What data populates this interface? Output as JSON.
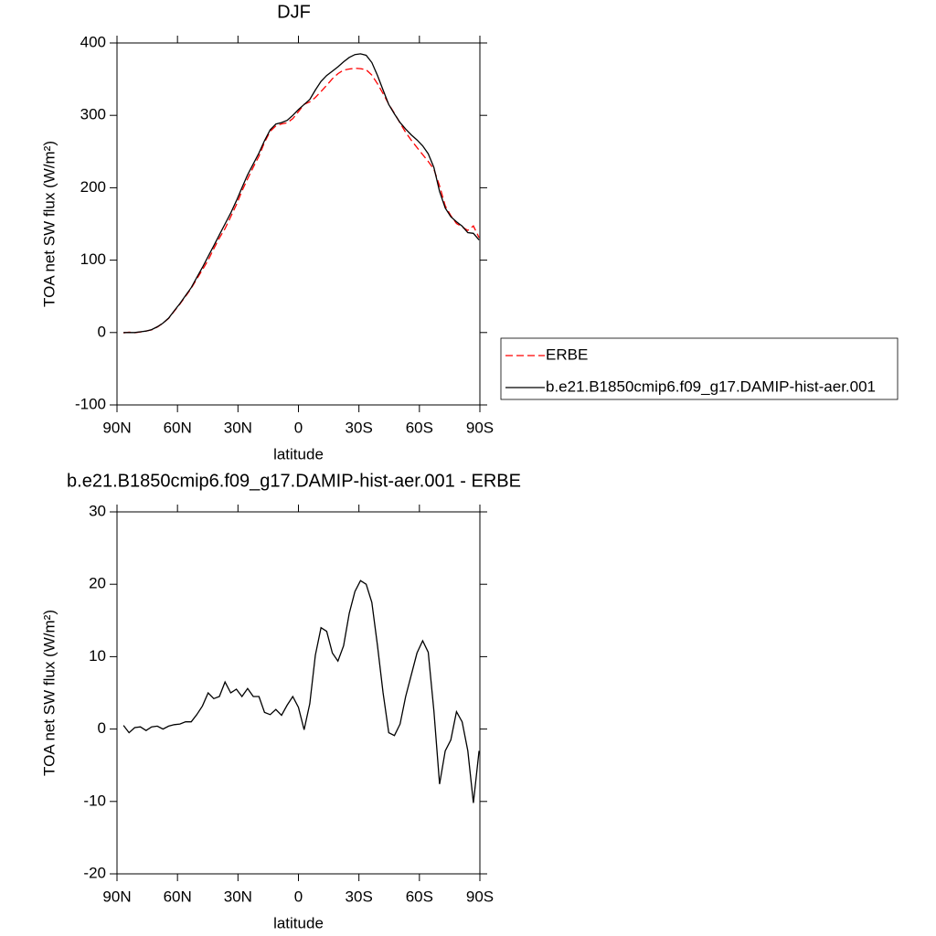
{
  "chart_data": [
    {
      "type": "line",
      "title": "DJF",
      "xlabel": "latitude",
      "ylabel": "TOA net SW flux (W/m²)",
      "x": [
        86.8,
        84.0,
        81.2,
        78.4,
        75.6,
        72.8,
        70.0,
        67.2,
        64.4,
        61.6,
        58.8,
        56.0,
        53.2,
        50.4,
        47.6,
        44.8,
        42.0,
        39.2,
        36.4,
        33.6,
        30.8,
        28.0,
        25.2,
        22.4,
        19.6,
        16.8,
        14.0,
        11.2,
        8.4,
        5.6,
        2.8,
        0.0,
        -2.8,
        -5.6,
        -8.4,
        -11.2,
        -14.0,
        -16.8,
        -19.6,
        -22.4,
        -25.2,
        -28.0,
        -30.8,
        -33.6,
        -36.4,
        -39.2,
        -42.0,
        -44.8,
        -47.6,
        -50.4,
        -53.2,
        -56.0,
        -58.8,
        -61.6,
        -64.4,
        -67.2,
        -70.0,
        -72.8,
        -75.6,
        -78.4,
        -81.2,
        -84.0,
        -86.8,
        -89.6
      ],
      "series": [
        {
          "name": "ERBE",
          "color": "#ff0000",
          "linestyle": "dashed",
          "values": [
            -0.5,
            0.5,
            -0.2,
            0.7,
            2.2,
            3.7,
            7.6,
            13,
            19.6,
            29.4,
            39.3,
            50,
            61,
            74,
            86.8,
            100,
            115.8,
            130.5,
            143.5,
            160,
            176.5,
            195.5,
            212.4,
            228.5,
            243.5,
            262.7,
            278,
            285.3,
            288.1,
            289.7,
            295.5,
            305,
            315.1,
            318.5,
            324.8,
            333,
            341.5,
            350.5,
            357.6,
            362.5,
            364,
            365,
            364.5,
            363,
            355.5,
            343.5,
            330,
            315.5,
            302.9,
            289.3,
            276.5,
            265.5,
            255.5,
            245.8,
            236.4,
            225.5,
            202.6,
            175,
            161.5,
            150.6,
            146,
            141,
            147.2,
            131
          ]
        },
        {
          "name": "b.e21.B1850cmip6.f09_g17.DAMIP-hist-aer.001",
          "color": "#000000",
          "linestyle": "solid",
          "values": [
            0,
            0,
            0,
            1,
            2,
            4,
            8,
            13,
            20,
            30,
            40,
            51,
            62,
            76,
            90,
            105,
            120,
            135,
            150,
            165,
            182,
            200,
            218,
            233,
            248,
            265,
            280,
            288,
            290,
            293,
            300,
            308,
            315,
            322,
            335,
            347,
            355,
            361,
            367,
            374,
            380,
            384,
            385,
            383,
            373,
            355,
            335,
            315,
            302,
            290,
            281,
            273,
            266,
            258,
            247,
            228,
            195,
            172,
            160,
            153,
            147,
            138,
            137,
            128
          ]
        }
      ],
      "xlim": [
        90,
        -90
      ],
      "xticks": [
        {
          "value": 90,
          "label": "90N"
        },
        {
          "value": 60,
          "label": "60N"
        },
        {
          "value": 30,
          "label": "30N"
        },
        0,
        {
          "value": -30,
          "label": "30S"
        },
        {
          "value": -60,
          "label": "60S"
        },
        {
          "value": -90,
          "label": "90S"
        }
      ],
      "ylim": [
        -100,
        400
      ],
      "yticks": [
        -100,
        0,
        100,
        200,
        300,
        400
      ],
      "legend": "right"
    },
    {
      "type": "line",
      "title": "b.e21.B1850cmip6.f09_g17.DAMIP-hist-aer.001 - ERBE",
      "xlabel": "latitude",
      "ylabel": "TOA net SW flux (W/m²)",
      "x": [
        86.8,
        84.0,
        81.2,
        78.4,
        75.6,
        72.8,
        70.0,
        67.2,
        64.4,
        61.6,
        58.8,
        56.0,
        53.2,
        50.4,
        47.6,
        44.8,
        42.0,
        39.2,
        36.4,
        33.6,
        30.8,
        28.0,
        25.2,
        22.4,
        19.6,
        16.8,
        14.0,
        11.2,
        8.4,
        5.6,
        2.8,
        0.0,
        -2.8,
        -5.6,
        -8.4,
        -11.2,
        -14.0,
        -16.8,
        -19.6,
        -22.4,
        -25.2,
        -28.0,
        -30.8,
        -33.6,
        -36.4,
        -39.2,
        -42.0,
        -44.8,
        -47.6,
        -50.4,
        -53.2,
        -56.0,
        -58.8,
        -61.6,
        -64.4,
        -67.2,
        -70.0,
        -72.8,
        -75.6,
        -78.4,
        -81.2,
        -84.0,
        -86.8,
        -89.6
      ],
      "series": [
        {
          "color": "#000000",
          "linestyle": "solid",
          "values": [
            0.5,
            -0.5,
            0.2,
            0.3,
            -0.2,
            0.3,
            0.4,
            0,
            0.4,
            0.6,
            0.7,
            1.0,
            1.0,
            2.0,
            3.2,
            5.0,
            4.2,
            4.5,
            6.5,
            5.0,
            5.5,
            4.5,
            5.6,
            4.5,
            4.5,
            2.3,
            2.0,
            2.7,
            1.9,
            3.3,
            4.5,
            3.0,
            -0.1,
            3.5,
            10.2,
            14.0,
            13.5,
            10.5,
            9.4,
            11.5,
            16.0,
            19.0,
            20.5,
            20.0,
            17.5,
            11.5,
            5.0,
            -0.5,
            -0.9,
            0.7,
            4.5,
            7.5,
            10.5,
            12.2,
            10.6,
            2.5,
            -7.6,
            -3.0,
            -1.5,
            2.4,
            1.0,
            -3.0,
            -10.2,
            -3.0
          ]
        }
      ],
      "xlim": [
        90,
        -90
      ],
      "xticks": [
        {
          "value": 90,
          "label": "90N"
        },
        {
          "value": 60,
          "label": "60N"
        },
        {
          "value": 30,
          "label": "30N"
        },
        0,
        {
          "value": -30,
          "label": "30S"
        },
        {
          "value": -60,
          "label": "60S"
        },
        {
          "value": -90,
          "label": "90S"
        }
      ],
      "ylim": [
        -20,
        30
      ],
      "yticks": [
        -20,
        -10,
        0,
        10,
        20,
        30
      ]
    }
  ]
}
